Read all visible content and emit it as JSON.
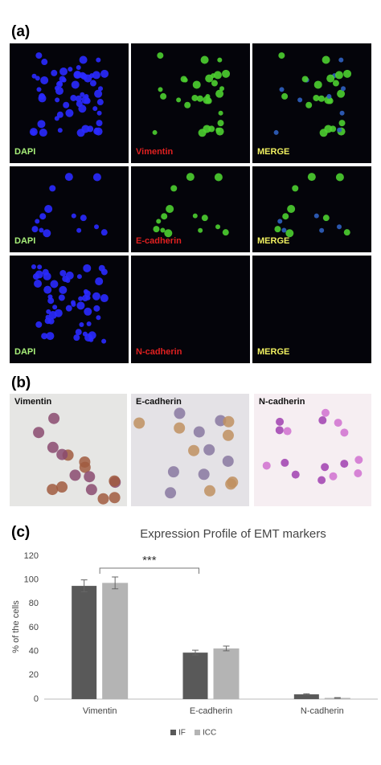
{
  "panels": {
    "a": {
      "label": "(a)",
      "rows": [
        [
          "DAPI",
          "Vimentin",
          "MERGE"
        ],
        [
          "DAPI",
          "E-cadherin",
          "MERGE"
        ],
        [
          "DAPI",
          "N-cadherin",
          "MERGE"
        ]
      ]
    },
    "b": {
      "label": "(b)",
      "images": [
        "Vimentin",
        "E-cadherin",
        "N-cadherin"
      ]
    },
    "c": {
      "label": "(c)"
    }
  },
  "chart_data": {
    "type": "bar",
    "title": "Expression Profile of EMT markers",
    "y_label": "% of the cells",
    "categories": [
      "Vimentin",
      "E-cadherin",
      "N-cadherin"
    ],
    "series": [
      {
        "name": "IF",
        "color": "#595959",
        "values": [
          95,
          39,
          4
        ],
        "errors": [
          5,
          2,
          0.5
        ]
      },
      {
        "name": "ICC",
        "color": "#b4b4b4",
        "values": [
          97.5,
          42.5,
          1
        ],
        "errors": [
          5,
          2,
          0.3
        ]
      }
    ],
    "annotation": "***",
    "ylim": [
      0,
      120
    ],
    "yticks": [
      0,
      20,
      40,
      60,
      80,
      100,
      120
    ],
    "grid": false,
    "legend": "bottom"
  }
}
